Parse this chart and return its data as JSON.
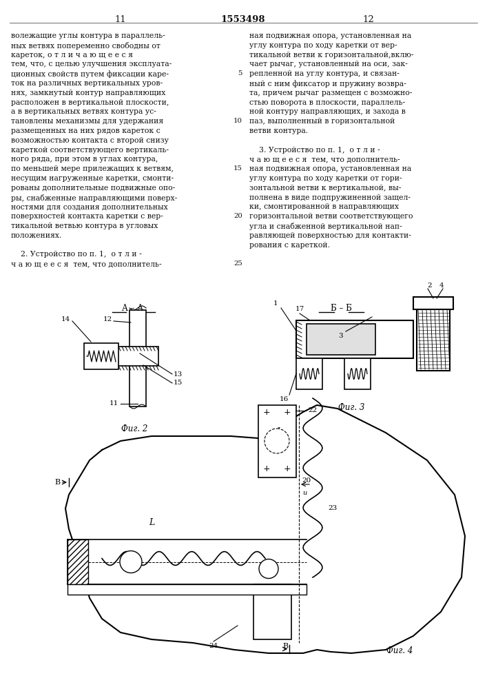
{
  "page_color": "#ffffff",
  "text_color": "#111111",
  "page_num_left": "11",
  "page_num_right": "12",
  "patent_num": "1553498",
  "col1_lines": [
    "волежащие углы контура в параллель-",
    "ных ветвях попеременно свободны от",
    "кареток, о т л и ч а ю щ е е с я",
    "тем, что, с целью улучшения эксплуата-",
    "ционных свойств путем фиксации каре-",
    "ток на различных вертикальных уров-",
    "нях, замкнутый контур направляющих",
    "расположен в вертикальной плоскости,",
    "а в вертикальных ветвях контура ус-",
    "тановлены механизмы для удержания",
    "размещенных на них рядов кареток с",
    "возможностью контакта с второй снизу",
    "кареткой соответствующего вертикаль-",
    "ного ряда, при этом в углах контура,",
    "по меньшей мере прилежащих к ветвям,",
    "несущим нагруженные каретки, смонти-",
    "рованы дополнительные подвижные опо-",
    "ры, снабженные направляющими поверх-",
    "ностями для создания дополнительных",
    "поверхностей контакта каретки с вер-",
    "тикальной ветвью контура в угловых",
    "положениях.",
    "",
    "    2. Устройство по п. 1,  о т л и -",
    "ч а ю щ е е с я  тем, что дополнитель-"
  ],
  "col2_lines": [
    "ная подвижная опора, установленная на",
    "углу контура по ходу каретки от вер-",
    "тикальной ветви к горизонтальной,вклю-",
    "чает рычаг, установленный на оси, зак-",
    "репленной на углу контура, и связан-",
    "ный с ним фиксатор и пружину возвра-",
    "та, причем рычаг размещен с возможно-",
    "стью поворота в плоскости, параллель-",
    "ной контуру направляющих, и захода в",
    "паз, выполненный в горизонтальной",
    "ветви контура.",
    "",
    "    3. Устройство по п. 1,  о т л и -",
    "ч а ю щ е е с я  тем, что дополнитель-",
    "ная подвижная опора, установленная на",
    "углу контура по ходу каретки от гори-",
    "зонтальной ветви к вертикальной, вы-",
    "полнена в виде подпружиненной защел-",
    "ки, смонтированной в направляющих",
    "горизонтальной ветви соответствующего",
    "угла и снабженной вертикальной нап-",
    "равляющей поверхностью для контакти-",
    "рования с кареткой."
  ],
  "ln_map": {
    "4": "5",
    "9": "10",
    "14": "15",
    "19": "20",
    "24": "25"
  }
}
